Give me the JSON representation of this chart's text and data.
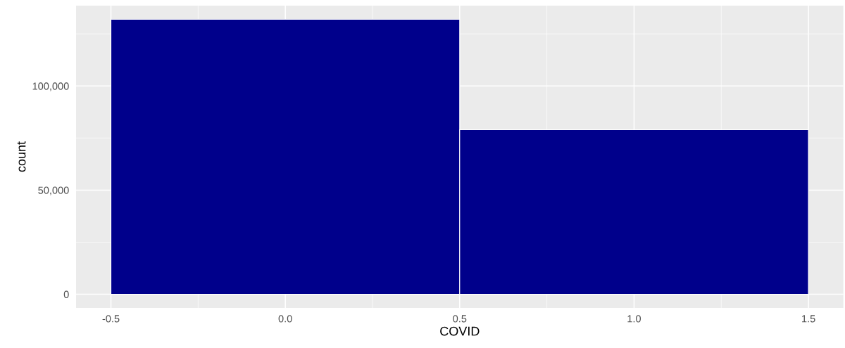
{
  "chart_data": {
    "type": "histogram",
    "xlabel": "COVID",
    "ylabel": "count",
    "bins": [
      -0.5,
      0.5,
      1.5
    ],
    "values": [
      132000,
      79000
    ],
    "color": "#00008b",
    "xlim": [
      -0.6,
      1.6
    ],
    "ylim": [
      -6600,
      138600
    ],
    "xticks": [
      {
        "value": -0.5,
        "label": "-0.5"
      },
      {
        "value": 0,
        "label": "0.0"
      },
      {
        "value": 0.5,
        "label": "0.5"
      },
      {
        "value": 1,
        "label": "1.0"
      },
      {
        "value": 1.5,
        "label": "1.5"
      }
    ],
    "yticks": [
      0,
      {
        "value": 50000,
        "label": "50,000"
      },
      {
        "value": 100000,
        "label": "100,000"
      }
    ],
    "grid": true,
    "legend": false
  }
}
